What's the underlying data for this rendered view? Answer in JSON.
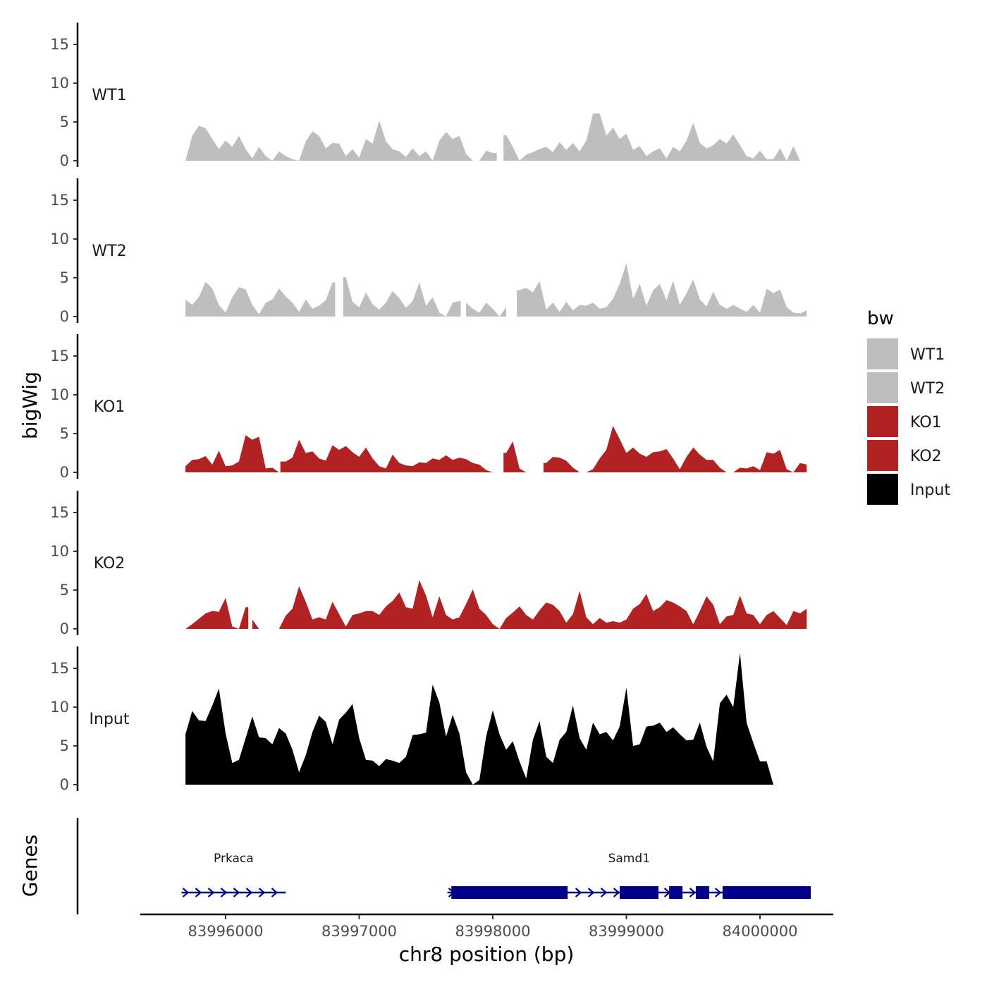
{
  "chart_data": {
    "type": "area",
    "xlabel": "chr8 position (bp)",
    "ylabel": "bigWig",
    "genes_label": "Genes",
    "xlim": [
      83995500,
      84000500
    ],
    "x_ticks": [
      83996000,
      83997000,
      83998000,
      83999000,
      84000000
    ],
    "x_tick_labels": [
      "83996000",
      "83997000",
      "83998000",
      "83999000",
      "84000000"
    ],
    "ylim": [
      0,
      18
    ],
    "y_ticks": [
      0,
      5,
      10,
      15
    ],
    "y_tick_labels": [
      "0",
      "5",
      "10",
      "15"
    ],
    "legend": {
      "title": "bw",
      "placement": "right",
      "entries": [
        {
          "label": "WT1",
          "color": "#bebebe"
        },
        {
          "label": "WT2",
          "color": "#bebebe"
        },
        {
          "label": "KO1",
          "color": "#b22222"
        },
        {
          "label": "KO2",
          "color": "#b22222"
        },
        {
          "label": "Input",
          "color": "#000000"
        }
      ]
    },
    "tracks": [
      {
        "name": "WT1",
        "color": "#bebebe",
        "x": [
          83995700,
          83995750,
          83995800,
          83995850,
          83995900,
          83995950,
          83996000,
          83996050,
          83996100,
          83996150,
          83996200,
          83996250,
          83996300,
          83996350,
          83996400,
          83996450,
          83996500,
          83996550,
          83996600,
          83996650,
          83996700,
          83996750,
          83996800,
          83996850,
          83996900,
          83996950,
          83997000,
          83997050,
          83997100,
          83997150,
          83997200,
          83997250,
          83997300,
          83997350,
          83997400,
          83997450,
          83997500,
          83997550,
          83997600,
          83997650,
          83997700,
          83997750,
          83997800,
          83997850,
          83997900,
          83997950,
          83998000,
          83998050,
          83998100,
          83998150,
          83998200,
          83998250,
          83998300,
          83998350,
          83998400,
          83998450,
          83998500,
          83998550,
          83998600,
          83998650,
          83998700,
          83998750,
          83998800,
          83998850,
          83998900,
          83998950,
          83999000,
          83999050,
          83999100,
          83999150,
          83999200,
          83999250,
          83999300,
          83999350,
          83999400,
          83999450,
          83999500,
          83999550,
          83999600,
          83999650,
          83999700,
          83999750,
          83999800,
          83999850,
          83999900,
          83999950,
          84000000,
          84000050,
          84000100,
          84000150,
          84000200,
          84000250,
          84000300,
          84000350
        ],
        "y": [
          0,
          3.2,
          4.5,
          4.2,
          2.8,
          1.5,
          2.6,
          1.8,
          3.2,
          1.5,
          0.3,
          1.8,
          0.6,
          0,
          1.2,
          0.6,
          0.2,
          0,
          2.5,
          3.8,
          3.2,
          1.6,
          2.3,
          2.2,
          0.6,
          1.5,
          0.4,
          2.8,
          2.2,
          5.2,
          2.5,
          1.5,
          1.2,
          0.5,
          1.6,
          0.6,
          1.2,
          0,
          2.6,
          3.7,
          2.8,
          3.2,
          0.9,
          0,
          0,
          1.3,
          1.0,
          2.1,
          3.3,
          1.8,
          0,
          0.8,
          1.1,
          1.5,
          1.8,
          1.1,
          2.4,
          1.4,
          2.3,
          1.2,
          2.6,
          6.1,
          6.1,
          3.2,
          4.3,
          2.8,
          3.5,
          1.4,
          1.9,
          0.6,
          1.2,
          1.6,
          0.3,
          1.8,
          1.2,
          2.6,
          4.9,
          2.3,
          1.6,
          2.0,
          2.8,
          2.2,
          3.4,
          2.0,
          0.6,
          0.3,
          1.3,
          0.2,
          0.2,
          1.6,
          0.0,
          1.9,
          0,
          0
        ],
        "ranges": [
          [
            83995700,
            83998030
          ],
          [
            83998080,
            84000350
          ]
        ]
      },
      {
        "name": "WT2",
        "color": "#bebebe",
        "x": [
          83995700,
          83995750,
          83995800,
          83995850,
          83995900,
          83995950,
          83996000,
          83996050,
          83996100,
          83996150,
          83996200,
          83996250,
          83996300,
          83996350,
          83996400,
          83996450,
          83996500,
          83996550,
          83996600,
          83996650,
          83996700,
          83996750,
          83996800,
          83996850,
          83996900,
          83996950,
          83997000,
          83997050,
          83997100,
          83997150,
          83997200,
          83997250,
          83997300,
          83997350,
          83997400,
          83997450,
          83997500,
          83997550,
          83997600,
          83997650,
          83997700,
          83997750,
          83997800,
          83997850,
          83997900,
          83997950,
          83998000,
          83998050,
          83998100,
          83998150,
          83998200,
          83998250,
          83998300,
          83998350,
          83998400,
          83998450,
          83998500,
          83998550,
          83998600,
          83998650,
          83998700,
          83998750,
          83998800,
          83998850,
          83998900,
          83998950,
          83999000,
          83999050,
          83999100,
          83999150,
          83999200,
          83999250,
          83999300,
          83999350,
          83999400,
          83999450,
          83999500,
          83999550,
          83999600,
          83999650,
          83999700,
          83999750,
          83999800,
          83999850,
          83999900,
          83999950,
          84000000,
          84000050,
          84000100,
          84000150,
          84000200,
          84000250,
          84000300,
          84000350
        ],
        "y": [
          2.2,
          1.5,
          2.5,
          4.5,
          3.6,
          1.5,
          0.5,
          2.5,
          3.8,
          3.5,
          1.5,
          0.3,
          1.8,
          2.2,
          3.6,
          2.6,
          1.8,
          0.6,
          2.2,
          1.0,
          1.4,
          2.1,
          4.4,
          0.9,
          5.1,
          1.9,
          1.2,
          3.1,
          1.6,
          0.9,
          1.8,
          3.3,
          2.4,
          1.1,
          2.0,
          4.4,
          1.4,
          2.5,
          0.5,
          0,
          1.8,
          2.0,
          1.8,
          1.0,
          0.5,
          1.8,
          1.0,
          0,
          1.2,
          2.4,
          3.4,
          3.7,
          3.1,
          4.6,
          0.9,
          1.8,
          0.6,
          1.9,
          0.8,
          1.5,
          1.4,
          1.8,
          1.0,
          1.2,
          2.3,
          4.2,
          6.9,
          2.3,
          4.2,
          1.4,
          3.4,
          4.2,
          2.1,
          4.6,
          1.5,
          3.0,
          4.8,
          2.2,
          1.3,
          3.2,
          1.5,
          1.0,
          1.5,
          1.0,
          0.6,
          1.5,
          0.5,
          3.6,
          3.0,
          3.5,
          1.2,
          0.5,
          0.4,
          0.8
        ],
        "ranges": [
          [
            83995700,
            83996820
          ],
          [
            83996880,
            83997760
          ],
          [
            83997800,
            83998100
          ],
          [
            83998180,
            84000350
          ]
        ]
      },
      {
        "name": "KO1",
        "color": "#b22222",
        "x": [
          83995700,
          83995750,
          83995800,
          83995850,
          83995900,
          83995950,
          83996000,
          83996050,
          83996100,
          83996150,
          83996200,
          83996250,
          83996300,
          83996350,
          83996400,
          83996450,
          83996500,
          83996550,
          83996600,
          83996650,
          83996700,
          83996750,
          83996800,
          83996850,
          83996900,
          83996950,
          83997000,
          83997050,
          83997100,
          83997150,
          83997200,
          83997250,
          83997300,
          83997350,
          83997400,
          83997450,
          83997500,
          83997550,
          83997600,
          83997650,
          83997700,
          83997750,
          83997800,
          83997850,
          83997900,
          83997950,
          83998000,
          83998050,
          83998100,
          83998150,
          83998200,
          83998250,
          83998300,
          83998350,
          83998400,
          83998450,
          83998500,
          83998550,
          83998600,
          83998650,
          83998700,
          83998750,
          83998800,
          83998850,
          83998900,
          83998950,
          83999000,
          83999050,
          83999100,
          83999150,
          83999200,
          83999250,
          83999300,
          83999350,
          83999400,
          83999450,
          83999500,
          83999550,
          83999600,
          83999650,
          83999700,
          83999750,
          83999800,
          83999850,
          83999900,
          83999950,
          84000000,
          84000050,
          84000100,
          84000150,
          84000200,
          84000250,
          84000300,
          84000350
        ],
        "y": [
          0.8,
          1.6,
          1.7,
          2.1,
          1.0,
          2.8,
          0.8,
          0.9,
          1.4,
          4.8,
          4.2,
          4.6,
          0.5,
          0.6,
          0,
          1.4,
          1.9,
          4.2,
          2.5,
          2.7,
          1.8,
          1.5,
          3.5,
          2.9,
          3.4,
          2.6,
          2.0,
          3.2,
          1.8,
          0.8,
          0.5,
          2.3,
          1.2,
          0.9,
          0.8,
          1.3,
          1.2,
          1.8,
          1.6,
          2.2,
          1.6,
          1.9,
          1.7,
          1.2,
          1.0,
          0.3,
          0,
          0,
          2.5,
          4.0,
          0.5,
          0,
          0,
          1.3,
          1.2,
          2.0,
          1.9,
          1.5,
          0.6,
          0,
          0,
          0.4,
          1.8,
          2.9,
          6.0,
          4.3,
          2.5,
          3.2,
          2.4,
          2.0,
          2.6,
          2.7,
          3.0,
          1.8,
          0.4,
          2.0,
          3.2,
          2.3,
          1.6,
          1.6,
          0.6,
          0,
          0,
          0.6,
          0.5,
          0.8,
          0.3,
          2.6,
          2.4,
          2.9,
          0.4,
          0,
          1.2,
          1.0
        ],
        "ranges": [
          [
            83995700,
            83996400
          ],
          [
            83996410,
            83998030
          ],
          [
            83998080,
            83998330
          ],
          [
            83998380,
            84000350
          ]
        ]
      },
      {
        "name": "KO2",
        "color": "#b22222",
        "x": [
          83995700,
          83995750,
          83995800,
          83995850,
          83995900,
          83995950,
          83996000,
          83996050,
          83996100,
          83996150,
          83996200,
          83996250,
          83996300,
          83996350,
          83996400,
          83996450,
          83996500,
          83996550,
          83996600,
          83996650,
          83996700,
          83996750,
          83996800,
          83996850,
          83996900,
          83996950,
          83997000,
          83997050,
          83997100,
          83997150,
          83997200,
          83997250,
          83997300,
          83997350,
          83997400,
          83997450,
          83997500,
          83997550,
          83997600,
          83997650,
          83997700,
          83997750,
          83997800,
          83997850,
          83997900,
          83997950,
          83998000,
          83998050,
          83998100,
          83998150,
          83998200,
          83998250,
          83998300,
          83998350,
          83998400,
          83998450,
          83998500,
          83998550,
          83998600,
          83998650,
          83998700,
          83998750,
          83998800,
          83998850,
          83998900,
          83998950,
          83999000,
          83999050,
          83999100,
          83999150,
          83999200,
          83999250,
          83999300,
          83999350,
          83999400,
          83999450,
          83999500,
          83999550,
          83999600,
          83999650,
          83999700,
          83999750,
          83999800,
          83999850,
          83999900,
          83999950,
          84000000,
          84000050,
          84000100,
          84000150,
          84000200,
          84000250,
          84000300,
          84000350
        ],
        "y": [
          0,
          0.6,
          1.3,
          2.0,
          2.3,
          2.2,
          4.0,
          0.3,
          0,
          2.8,
          1.2,
          0,
          0,
          0,
          0,
          1.7,
          2.6,
          5.5,
          3.5,
          1.2,
          1.5,
          1.2,
          3.5,
          1.9,
          0.3,
          1.8,
          2.0,
          2.3,
          2.3,
          1.8,
          2.9,
          3.6,
          4.7,
          2.8,
          2.6,
          6.3,
          4.3,
          1.5,
          4.2,
          1.8,
          1.2,
          1.5,
          3.2,
          5.1,
          2.6,
          1.8,
          0.6,
          0,
          1.4,
          2.1,
          2.9,
          1.8,
          1.2,
          2.4,
          3.4,
          3.1,
          2.3,
          0.8,
          1.9,
          4.9,
          1.5,
          0.6,
          1.4,
          0.8,
          1.0,
          0.8,
          1.2,
          2.6,
          3.2,
          4.5,
          2.3,
          2.8,
          3.7,
          3.4,
          2.9,
          2.3,
          0.6,
          2.3,
          4.2,
          3.1,
          0.6,
          1.6,
          1.8,
          4.3,
          2.0,
          1.8,
          0.6,
          1.8,
          2.3,
          1.4,
          0.5,
          2.3,
          2.0,
          2.6
        ],
        "ranges": [
          [
            83995700,
            83996170
          ],
          [
            83996200,
            83996320
          ],
          [
            83996380,
            84000350
          ]
        ]
      },
      {
        "name": "Input",
        "color": "#000000",
        "x": [
          83995700,
          83995750,
          83995800,
          83995850,
          83995900,
          83995950,
          83996000,
          83996050,
          83996100,
          83996150,
          83996200,
          83996250,
          83996300,
          83996350,
          83996400,
          83996450,
          83996500,
          83996550,
          83996600,
          83996650,
          83996700,
          83996750,
          83996800,
          83996850,
          83996900,
          83996950,
          83997000,
          83997050,
          83997100,
          83997150,
          83997200,
          83997250,
          83997300,
          83997350,
          83997400,
          83997450,
          83997500,
          83997550,
          83997600,
          83997650,
          83997700,
          83997750,
          83997800,
          83997850,
          83997900,
          83997950,
          83998000,
          83998050,
          83998100,
          83998150,
          83998200,
          83998250,
          83998300,
          83998350,
          83998400,
          83998450,
          83998500,
          83998550,
          83998600,
          83998650,
          83998700,
          83998750,
          83998800,
          83998850,
          83998900,
          83998950,
          83999000,
          83999050,
          83999100,
          83999150,
          83999200,
          83999250,
          83999300,
          83999350,
          83999400,
          83999450,
          83999500,
          83999550,
          83999600,
          83999650,
          83999700,
          83999750,
          83999800,
          83999850,
          83999900,
          83999950,
          84000000,
          84000050,
          84000100,
          84000150,
          84000200,
          84000250,
          84000300,
          84000350
        ],
        "y": [
          6.5,
          9.5,
          8.3,
          8.2,
          10.2,
          12.4,
          6.6,
          2.8,
          3.2,
          6.0,
          8.8,
          6.1,
          6.0,
          5.2,
          7.3,
          6.6,
          4.5,
          1.6,
          3.8,
          6.8,
          8.9,
          8.1,
          5.2,
          8.4,
          9.3,
          10.4,
          6.0,
          3.2,
          3.1,
          2.4,
          3.3,
          3.1,
          2.8,
          3.6,
          6.4,
          6.5,
          6.7,
          12.9,
          10.6,
          6.2,
          9.0,
          6.6,
          1.6,
          0,
          0.6,
          6.2,
          9.6,
          6.5,
          4.5,
          5.6,
          3.0,
          0.8,
          5.8,
          8.2,
          3.6,
          2.8,
          5.8,
          6.8,
          10.2,
          6.0,
          4.5,
          8.0,
          6.5,
          6.8,
          5.7,
          7.5,
          12.5,
          5.0,
          5.2,
          7.5,
          7.6,
          8.0,
          6.8,
          7.4,
          6.5,
          5.7,
          5.8,
          8.0,
          4.9,
          3.0,
          10.5,
          11.6,
          10.0,
          17.0,
          8.0,
          5.4,
          3.0,
          3.0,
          0,
          0,
          0,
          0,
          0,
          0
        ],
        "ranges": [
          [
            83995700,
            84000350
          ]
        ]
      }
    ],
    "genes": [
      {
        "name": "Prkaca",
        "start": 83995670,
        "end": 83996450,
        "strand": "+",
        "exons": []
      },
      {
        "name": "Samd1",
        "start": 83997660,
        "end": 84000380,
        "strand": "+",
        "exons": [
          [
            83997690,
            83998560
          ],
          [
            83998950,
            83999240
          ],
          [
            83999320,
            83999420
          ],
          [
            83999520,
            83999620
          ],
          [
            83999720,
            84000380
          ]
        ]
      }
    ]
  }
}
